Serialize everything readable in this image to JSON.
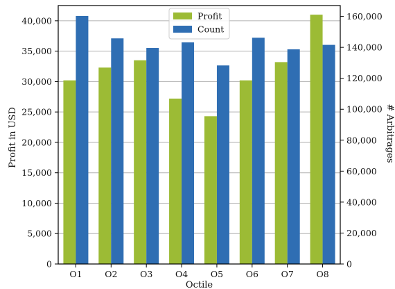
{
  "chart_data": {
    "type": "bar",
    "categories": [
      "O1",
      "O2",
      "O3",
      "O4",
      "O5",
      "O6",
      "O7",
      "O8"
    ],
    "series": [
      {
        "name": "Profit",
        "axis": "left",
        "color": "#9cbb35",
        "values": [
          30200,
          32300,
          33500,
          27200,
          24300,
          30200,
          33200,
          41000
        ]
      },
      {
        "name": "Count",
        "axis": "right",
        "color": "#2f6eb3",
        "values": [
          160300,
          145800,
          139600,
          143200,
          128300,
          146200,
          138700,
          141600
        ]
      }
    ],
    "xlabel": "Octile",
    "ylabel": "Profit in USD",
    "y2label": "# Arbitrages",
    "ylim": [
      0,
      42500
    ],
    "y2lim": [
      0,
      167000
    ],
    "yticks": [
      0,
      5000,
      10000,
      15000,
      20000,
      25000,
      30000,
      35000,
      40000
    ],
    "yticks_labels": [
      "0",
      "5,000",
      "10,000",
      "15,000",
      "20,000",
      "25,000",
      "30,000",
      "35,000",
      "40,000"
    ],
    "y2ticks": [
      0,
      20000,
      40000,
      60000,
      80000,
      100000,
      120000,
      140000,
      160000
    ],
    "y2ticks_labels": [
      "0",
      "20,000",
      "40,000",
      "60,000",
      "80,000",
      "100,000",
      "120,000",
      "140,000",
      "160,000"
    ],
    "grid": "horizontal (left axis)",
    "legend": "top-center"
  }
}
